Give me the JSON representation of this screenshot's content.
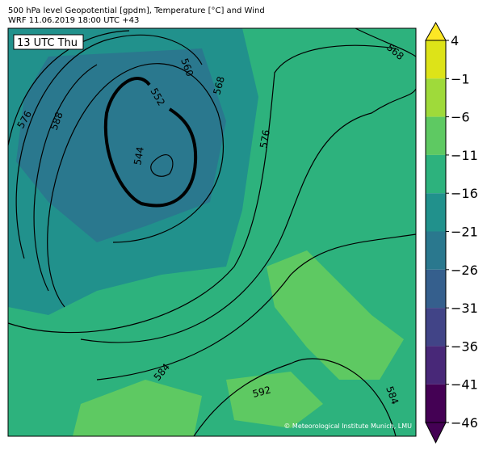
{
  "header": {
    "line1": "500 hPa level Geopotential [gpdm], Temperature [°C] and Wind",
    "line2": "WRF 11.06.2019 18:00 UTC +43"
  },
  "map": {
    "time_label": "13 UTC Thu",
    "contour_labels": [
      "568",
      "576",
      "588",
      "560",
      "552",
      "544",
      "568",
      "576",
      "584",
      "592",
      "584"
    ],
    "copyright": "© Meteorological Institute Munich, LMU"
  },
  "colorbar": {
    "ticks": [
      "4",
      "−1",
      "−6",
      "−11",
      "−16",
      "−21",
      "−26",
      "−31",
      "−36",
      "−41",
      "−46"
    ],
    "colors": [
      "#fde725",
      "#dde318",
      "#9fda3a",
      "#5ec962",
      "#2db27d",
      "#21918c",
      "#2a788e",
      "#355f8d",
      "#414487",
      "#482878",
      "#440154",
      "#440154"
    ]
  }
}
